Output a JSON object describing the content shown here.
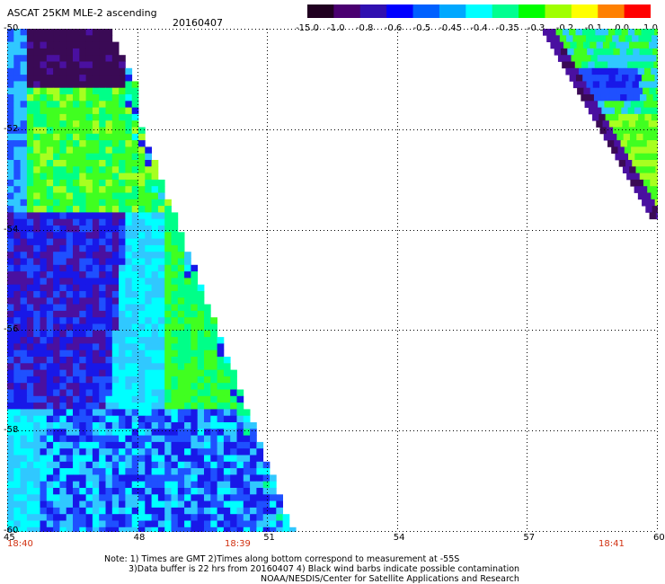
{
  "header": {
    "title": "ASCAT 25KM MLE-2 ascending",
    "date": "20160407"
  },
  "colorbar": {
    "labels": [
      "-15.0",
      "-1.0",
      "-0.8",
      "-0.6",
      "-0.5",
      "-0.45",
      "-0.4",
      "-0.35",
      "-0.3",
      "-0.2",
      "-0.1",
      "0.0",
      "1.0"
    ],
    "colors": [
      "#200020",
      "#4a0070",
      "#3010b0",
      "#0000ff",
      "#0060ff",
      "#00a8ff",
      "#00ffff",
      "#00ff90",
      "#00ff00",
      "#a0ff00",
      "#ffff00",
      "#ff8000",
      "#ff0000"
    ]
  },
  "axes": {
    "x_ticks": [
      "45",
      "48",
      "51",
      "54",
      "57",
      "60"
    ],
    "y_ticks": [
      "-50",
      "-52",
      "-54",
      "-56",
      "-58",
      "-60"
    ]
  },
  "times": [
    "18:40",
    "18:39",
    "18:41"
  ],
  "notes": {
    "line1": "Note: 1) Times are GMT 2)Times along bottom correspond to measurement at -55S",
    "line2": "3)Data buffer is 22 hrs from 20160407 4) Black wind barbs indicate possible contamination",
    "line3": "NOAA/NESDIS/Center for Satellite Applications and Research"
  }
}
